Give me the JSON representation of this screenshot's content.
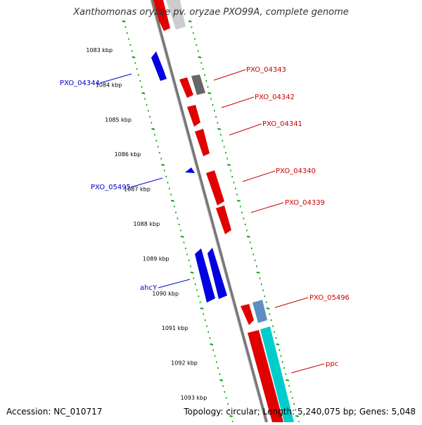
{
  "title": "Xanthomonas oryzae pv. oryzae PXO99A, complete genome",
  "footer": {
    "accession": "Accession: NC_010717",
    "summary": "Topology: circular; Length: 5,240,075 bp; Genes: 5,048"
  },
  "colors": {
    "forward": "#e00000",
    "reverse": "#0000e0",
    "neutral": "#777777",
    "rna": "#00cccc",
    "ticks": "#00a000",
    "label_red": "#cc0000",
    "label_blue": "#0000cc"
  },
  "scale_ticks": [
    "1083 kbp",
    "1084 kbp",
    "1085 kbp",
    "1086 kbp",
    "1087 kbp",
    "1088 kbp",
    "1089 kbp",
    "1090 kbp",
    "1091 kbp",
    "1092 kbp",
    "1093 kbp"
  ],
  "gene_labels": {
    "forward": [
      "PXO_04343",
      "PXO_04342",
      "PXO_04341",
      "PXO_04340",
      "PXO_04339",
      "PXO_05496",
      "ppc"
    ],
    "reverse": [
      "PXO_04344",
      "PXO_05495",
      "ahcY"
    ]
  }
}
